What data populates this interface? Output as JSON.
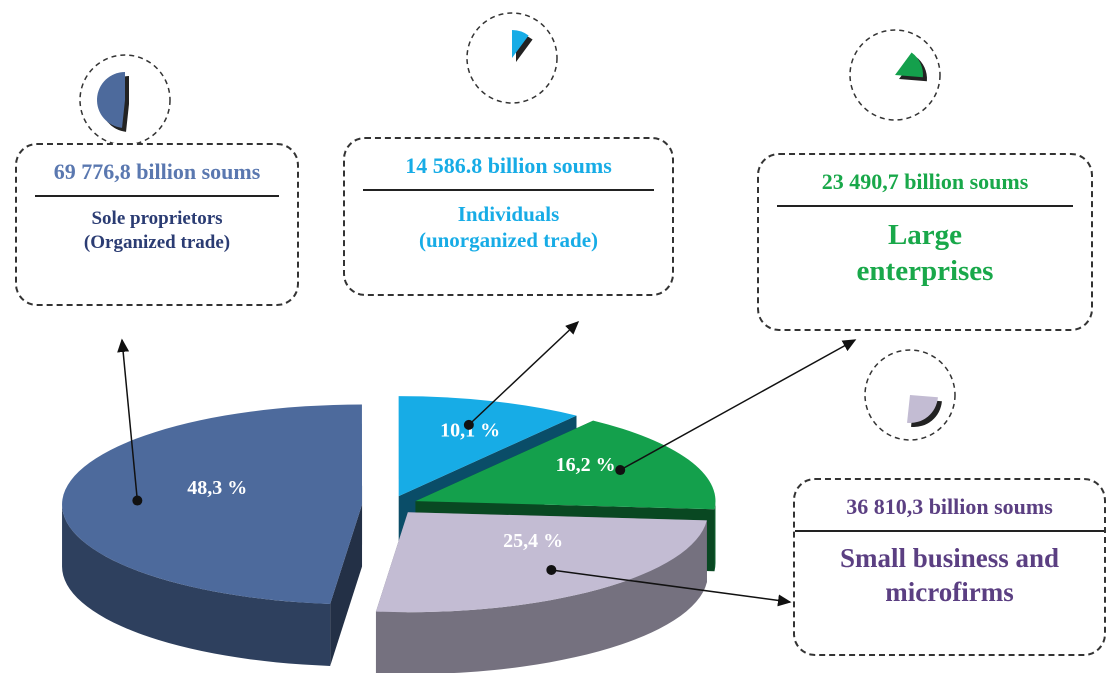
{
  "chart_data": {
    "type": "pie",
    "categories": [
      "Sole proprietors\n(Organized trade)",
      "Individuals\n(unorganized trade)",
      "Large\nenterprises",
      "Small business and\nmicrofirms"
    ],
    "values": [
      48.3,
      10.1,
      16.2,
      25.4
    ],
    "value_labels": [
      "48,3 %",
      "10,1 %",
      "16,2 %",
      "25,4 %"
    ],
    "amount_labels": [
      "69 776,8 billion soums",
      "14 586.8 billion soums",
      "23 490,7 billion soums",
      "36 810,3 billion soums"
    ],
    "colors": [
      "#4d6a9c",
      "#17ace6",
      "#14a04c",
      "#c3bcd3"
    ],
    "text_colors": [
      "#5a78b0",
      "#17ace6",
      "#19a84a",
      "#5b3f82"
    ],
    "name_colors": [
      "#2b3c73",
      "#17ace6",
      "#19a84a",
      "#5b3f82"
    ]
  }
}
